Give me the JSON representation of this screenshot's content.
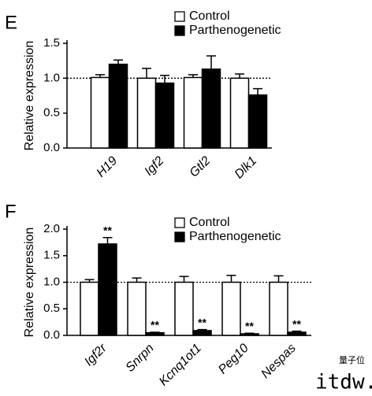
{
  "chart_data": [
    {
      "type": "bar",
      "panel_label": "E",
      "ylabel": "Relative expression",
      "categories": [
        "H19",
        "Igf2",
        "Gtl2",
        "Dlk1"
      ],
      "series": [
        {
          "name": "Control",
          "color": "#ffffff",
          "values": [
            1.01,
            1.0,
            1.01,
            1.0
          ],
          "errors": [
            0.04,
            0.14,
            0.04,
            0.06
          ]
        },
        {
          "name": "Parthenogenetic",
          "color": "#000000",
          "values": [
            1.2,
            0.93,
            1.13,
            0.76
          ],
          "errors": [
            0.06,
            0.11,
            0.19,
            0.09
          ]
        }
      ],
      "ylim": [
        0,
        1.5
      ],
      "yticks": [
        {
          "value": 0,
          "label": "0.0"
        },
        {
          "value": 0.5,
          "label": "0.5"
        },
        {
          "value": 1,
          "label": "1.0"
        },
        {
          "value": 1.5,
          "label": "1.5"
        }
      ],
      "reference_line": 1.0,
      "legend": "top-right"
    },
    {
      "type": "bar",
      "panel_label": "F",
      "ylabel": "Relative expression",
      "categories": [
        "Igf2r",
        "Snrpn",
        "Kcnq1ot1",
        "Peg10",
        "Nespas"
      ],
      "series": [
        {
          "name": "Control",
          "color": "#ffffff",
          "values": [
            1.0,
            1.0,
            1.0,
            1.0,
            1.0
          ],
          "errors": [
            0.05,
            0.08,
            0.11,
            0.13,
            0.12
          ]
        },
        {
          "name": "Parthenogenetic",
          "color": "#000000",
          "values": [
            1.72,
            0.05,
            0.09,
            0.03,
            0.06
          ],
          "errors": [
            0.12,
            0.01,
            0.02,
            0.01,
            0.02
          ]
        }
      ],
      "significance": [
        "**",
        "**",
        "**",
        "**",
        "**"
      ],
      "ylim": [
        0,
        2.0
      ],
      "yticks": [
        {
          "value": 0,
          "label": "0.0"
        },
        {
          "value": 0.5,
          "label": "0.5"
        },
        {
          "value": 1,
          "label": "1.0"
        },
        {
          "value": 1.5,
          "label": "1.5"
        },
        {
          "value": 2,
          "label": "2.0"
        }
      ],
      "reference_line": 1.0,
      "legend": "top-right"
    }
  ],
  "watermark": "itdw.cn",
  "watermark_logo": "量子位"
}
